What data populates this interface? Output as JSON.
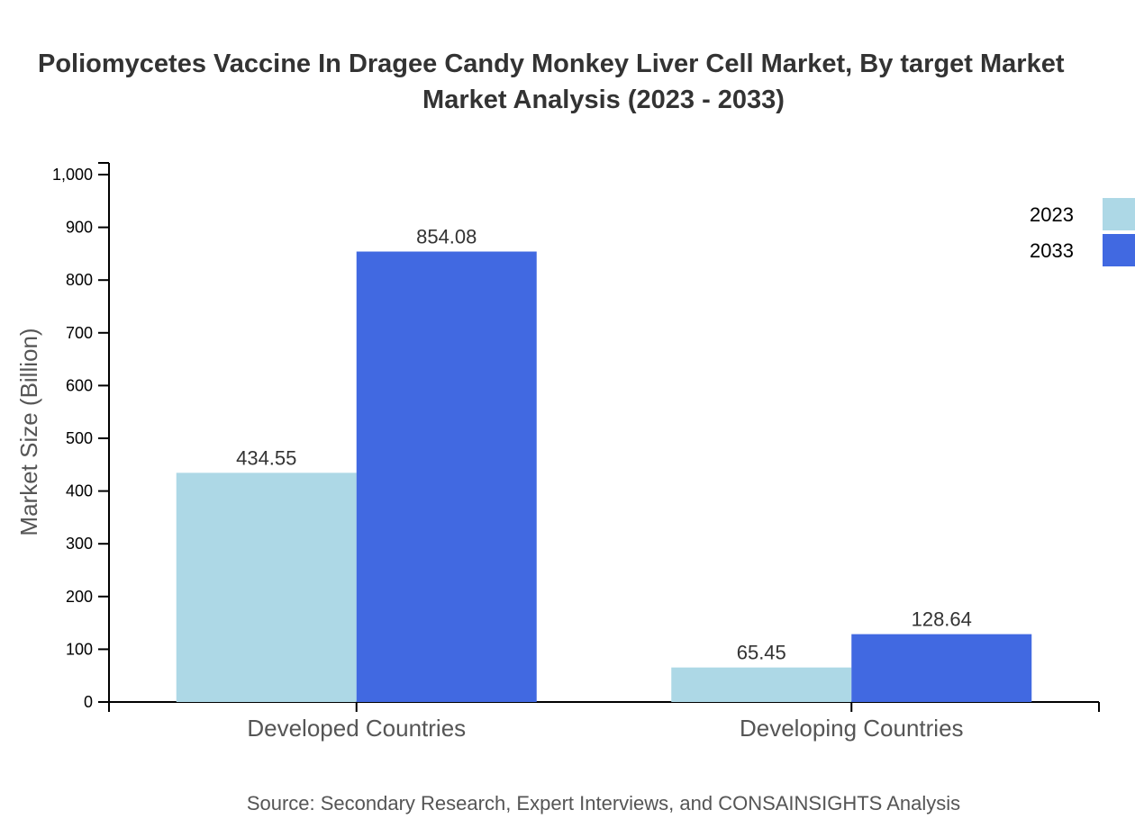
{
  "chart_data": {
    "type": "bar",
    "title_lines": [
      "Poliomycetes Vaccine In Dragee Candy Monkey Liver Cell Market, By target Market",
      "Market Analysis (2023 - 2033)"
    ],
    "xlabel": "",
    "ylabel": "Market Size (Billion)",
    "ylim": [
      0,
      1000
    ],
    "yticks": [
      0,
      100,
      200,
      300,
      400,
      500,
      600,
      700,
      800,
      900,
      1000
    ],
    "ytick_labels": [
      "0",
      "100",
      "200",
      "300",
      "400",
      "500",
      "600",
      "700",
      "800",
      "900",
      "1,000"
    ],
    "categories": [
      "Developed Countries",
      "Developing Countries"
    ],
    "series": [
      {
        "name": "2023",
        "values": [
          434.55,
          65.45
        ],
        "color": "#add8e6"
      },
      {
        "name": "2033",
        "values": [
          854.08,
          128.64
        ],
        "color": "#4169e1"
      }
    ],
    "grid": false,
    "legend_position": "top-right",
    "source": "Source: Secondary Research, Expert Interviews, and CONSAINSIGHTS Analysis"
  }
}
